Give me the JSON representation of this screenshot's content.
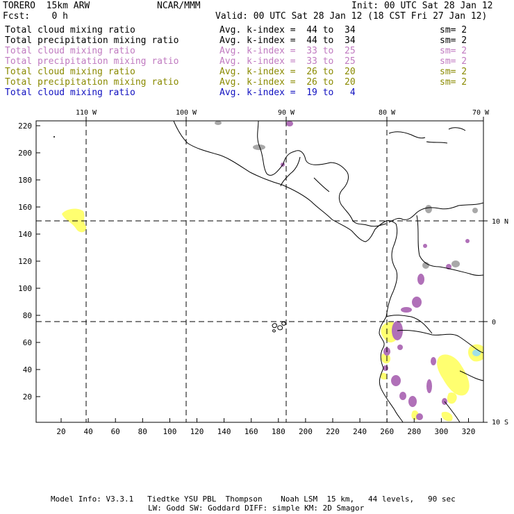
{
  "header": {
    "model": "TORERO  15km ARW",
    "org": "NCAR/MMM",
    "init": "Init: 00 UTC Sat 28 Jan 12",
    "fcst": "Fcst:    0 h",
    "valid": "Valid: 00 UTC Sat 28 Jan 12 (18 CST Fri 27 Jan 12)"
  },
  "legend": [
    {
      "field": "Total cloud mixing ratio",
      "index": "Avg. k-index =  44 to  34",
      "sm": "sm= 2",
      "color": "#000000"
    },
    {
      "field": "Total precipitation mixing ratio",
      "index": "Avg. k-index =  44 to  34",
      "sm": "sm= 2",
      "color": "#000000"
    },
    {
      "field": "Total cloud mixing ratio",
      "index": "Avg. k-index =  33 to  25",
      "sm": "sm= 2",
      "color": "#c07ac0"
    },
    {
      "field": "Total precipitation mixing ratio",
      "index": "Avg. k-index =  33 to  25",
      "sm": "sm= 2",
      "color": "#c07ac0"
    },
    {
      "field": "Total cloud mixing ratio",
      "index": "Avg. k-index =  26 to  20",
      "sm": "sm= 2",
      "color": "#8a8a00"
    },
    {
      "field": "Total precipitation mixing ratio",
      "index": "Avg. k-index =  26 to  20",
      "sm": "sm= 2",
      "color": "#8a8a00"
    },
    {
      "field": "Total cloud mixing ratio",
      "index": "Avg. k-index =  19 to   4",
      "sm": "",
      "color": "#1010c0"
    }
  ],
  "map": {
    "lon_labels": [
      "110 W",
      "100 W",
      "90 W",
      "80 W",
      "70 W"
    ],
    "lat_labels": [
      "10 N",
      "0",
      "10 S"
    ],
    "y_ticks": [
      "220",
      "200",
      "180",
      "160",
      "140",
      "120",
      "100",
      "80",
      "60",
      "40",
      "20"
    ],
    "x_ticks": [
      "20",
      "40",
      "60",
      "80",
      "100",
      "120",
      "140",
      "160",
      "180",
      "200",
      "220",
      "240",
      "260",
      "280",
      "300",
      "320"
    ],
    "colors": {
      "gray": "#a8a8a8",
      "purple": "#b070b8",
      "yellow": "#ffff70",
      "cyan": "#a0e0e8"
    }
  },
  "footer": {
    "line1": "Model Info: V3.3.1   Tiedtke YSU PBL  Thompson    Noah LSM  15 km,   44 levels,   90 sec",
    "line2": "LW: Godd SW: Goddard DIFF: simple KM: 2D Smagor"
  }
}
